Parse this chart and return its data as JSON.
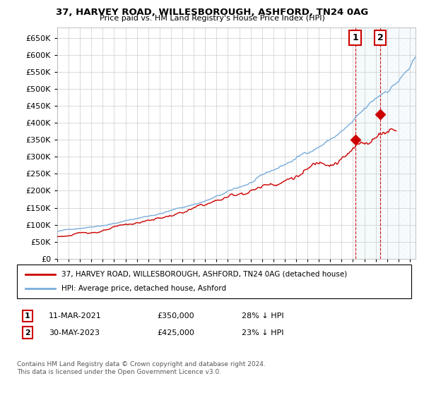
{
  "title": "37, HARVEY ROAD, WILLESBOROUGH, ASHFORD, TN24 0AG",
  "subtitle": "Price paid vs. HM Land Registry's House Price Index (HPI)",
  "ylim": [
    0,
    680000
  ],
  "xlim_start": 1995.0,
  "xlim_end": 2026.5,
  "hpi_color": "#7aaddb",
  "price_color": "#cc0000",
  "point1_x": 2021.19,
  "point1_y": 350000,
  "point2_x": 2023.41,
  "point2_y": 425000,
  "legend_property": "37, HARVEY ROAD, WILLESBOROUGH, ASHFORD, TN24 0AG (detached house)",
  "legend_hpi": "HPI: Average price, detached house, Ashford",
  "note1_date": "11-MAR-2021",
  "note1_price": "£350,000",
  "note1_hpi": "28% ↓ HPI",
  "note2_date": "30-MAY-2023",
  "note2_price": "£425,000",
  "note2_hpi": "23% ↓ HPI",
  "footer": "Contains HM Land Registry data © Crown copyright and database right 2024.\nThis data is licensed under the Open Government Licence v3.0.",
  "background_color": "#ffffff",
  "grid_color": "#cccccc"
}
